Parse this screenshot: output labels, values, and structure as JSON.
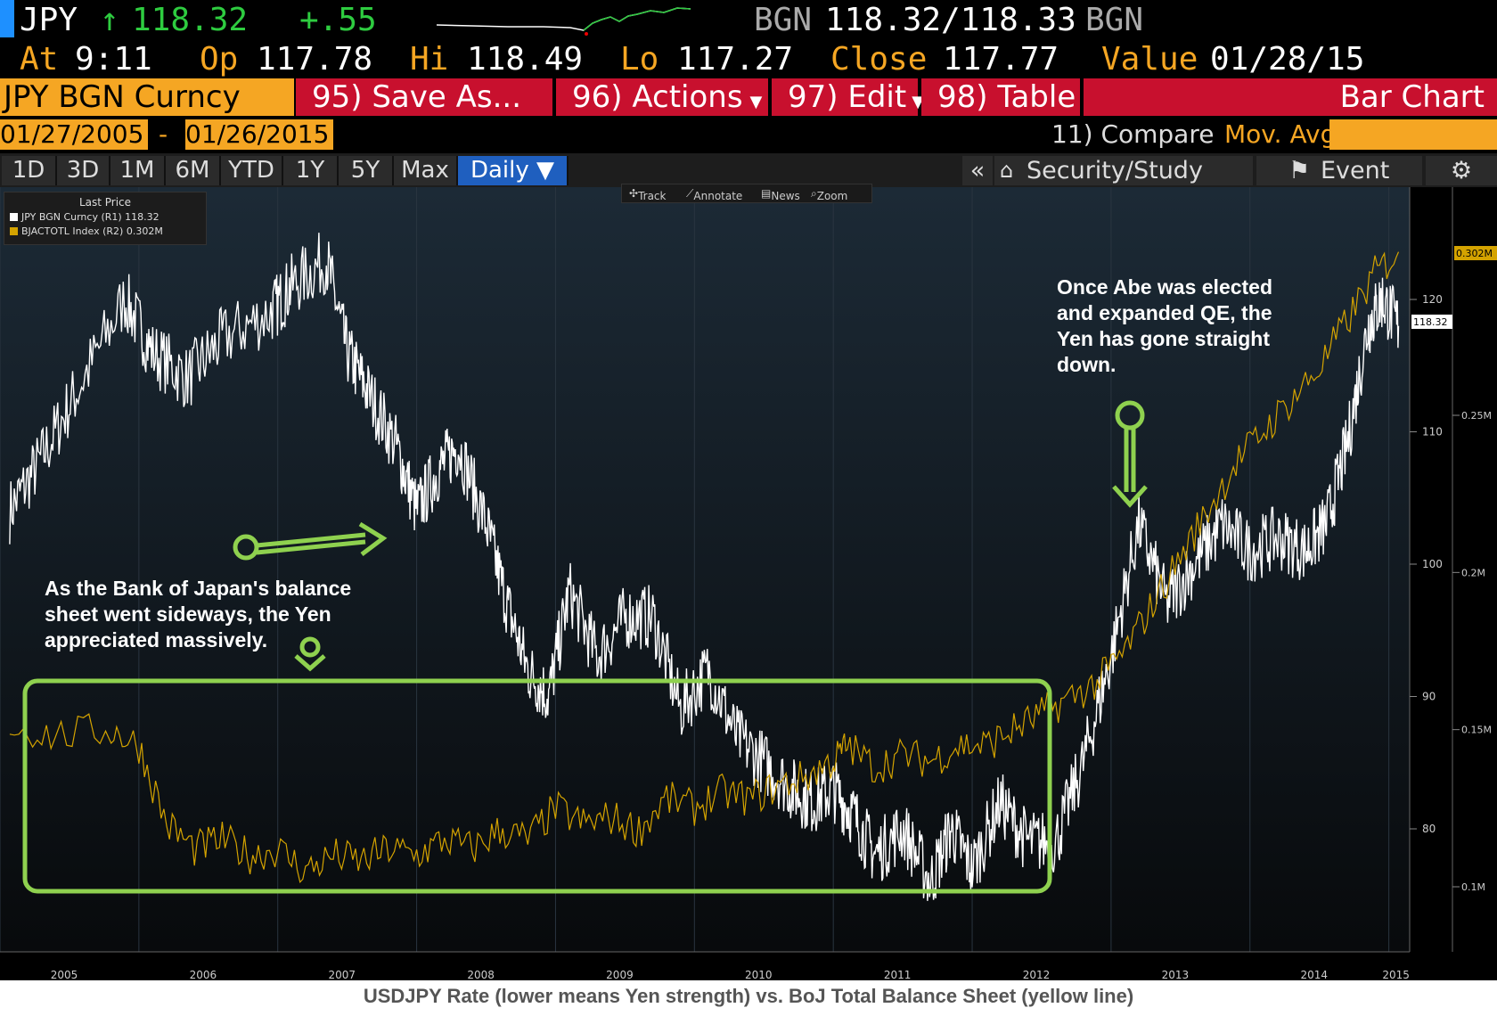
{
  "header": {
    "ticker": "JPY",
    "arrow": "↑",
    "last": "118.32",
    "change": "+.55",
    "source": "BGN",
    "bid_ask": "118.32/118.33",
    "source2": "BGN",
    "at_label": "At",
    "at_value": "9:11",
    "op_label": "Op",
    "op_value": "117.78",
    "hi_label": "Hi",
    "hi_value": "118.49",
    "lo_label": "Lo",
    "lo_value": "117.27",
    "close_label": "Close",
    "close_value": "117.77",
    "value_label": "Value",
    "value_value": "01/28/15"
  },
  "toolbar": {
    "security": "JPY BGN Curncy",
    "save_as": "95) Save As...",
    "actions": "96) Actions",
    "edit": "97) Edit",
    "table": "98) Table",
    "view": "Bar Chart",
    "date_from": "01/27/2005",
    "date_sep": "-",
    "date_to": "01/26/2015",
    "compare": "11) Compare",
    "mov_avgs": "Mov. Avgs",
    "periods": [
      "1D",
      "3D",
      "1M",
      "6M",
      "YTD",
      "1Y",
      "5Y",
      "Max"
    ],
    "frequency": "Daily ▼",
    "collapse": "«",
    "security_study": "Security/Study",
    "event": "Event",
    "gear": "⚙"
  },
  "tools": {
    "track": "Track",
    "annotate": "Annotate",
    "news": "News",
    "zoom": "Zoom"
  },
  "legend": {
    "title": "Last Price",
    "items": [
      {
        "label": "JPY BGN Curncy  (R1) 118.32",
        "color": "#ffffff"
      },
      {
        "label": "BJACTOTL Index  (R2)    0.302M",
        "color": "#d4a300"
      }
    ]
  },
  "annotations": {
    "left": [
      "As the Bank of Japan's balance",
      "sheet went sideways, the Yen",
      "appreciated massively."
    ],
    "right": [
      "Once Abe was elected",
      "and expanded QE, the",
      "Yen has gone straight",
      "down."
    ]
  },
  "caption": "USDJPY Rate (lower means Yen strength) vs. BoJ Total Balance Sheet (yellow line)",
  "chart_data": {
    "type": "line",
    "x_ticks": [
      "2005",
      "2006",
      "2007",
      "2008",
      "2009",
      "2010",
      "2011",
      "2012",
      "2013",
      "2014",
      "2015"
    ],
    "y1_ticks": [
      "80",
      "90",
      "100",
      "110",
      "120"
    ],
    "y2_ticks": [
      "0.1M",
      "0.15M",
      "0.2M",
      "0.25M"
    ],
    "y1_last": "118.32",
    "y2_last": "0.302M",
    "y1_lim": [
      75,
      125
    ],
    "y2_lim": [
      0.08,
      0.32
    ],
    "series": [
      {
        "name": "JPY BGN Curncy",
        "axis": "y1",
        "color": "#ffffff",
        "x": [
          2005.07,
          2005.3,
          2005.55,
          2005.9,
          2006.1,
          2006.35,
          2006.6,
          2006.95,
          2007.1,
          2007.35,
          2007.5,
          2007.65,
          2007.85,
          2008.0,
          2008.15,
          2008.3,
          2008.5,
          2008.65,
          2008.8,
          2008.95,
          2009.1,
          2009.3,
          2009.5,
          2009.7,
          2009.9,
          2010.1,
          2010.3,
          2010.5,
          2010.7,
          2010.85,
          2011.0,
          2011.15,
          2011.3,
          2011.5,
          2011.7,
          2011.85,
          2012.0,
          2012.2,
          2012.4,
          2012.6,
          2012.8,
          2013.0,
          2013.2,
          2013.4,
          2013.6,
          2013.8,
          2014.0,
          2014.2,
          2014.4,
          2014.55,
          2014.7,
          2014.85,
          2014.95,
          2015.07
        ],
        "y": [
          104,
          108,
          113,
          120,
          116,
          114,
          117,
          119,
          121,
          123,
          116,
          113,
          109,
          104,
          107,
          109,
          103,
          97,
          92,
          90,
          98,
          93,
          96,
          96,
          89,
          92,
          87,
          85,
          83,
          82,
          83,
          81,
          78,
          80,
          76,
          80,
          77,
          82,
          79,
          79,
          85,
          93,
          103,
          97,
          100,
          103,
          101,
          102,
          101,
          103,
          109,
          118,
          120,
          118
        ]
      },
      {
        "name": "BJACTOTL Index",
        "axis": "y2",
        "color": "#d4a300",
        "x": [
          2005.07,
          2005.4,
          2005.8,
          2006.0,
          2006.2,
          2006.4,
          2006.6,
          2006.8,
          2007.0,
          2007.2,
          2007.4,
          2007.6,
          2007.8,
          2008.0,
          2008.2,
          2008.4,
          2008.6,
          2008.8,
          2009.0,
          2009.2,
          2009.4,
          2009.6,
          2009.8,
          2010.0,
          2010.2,
          2010.4,
          2010.6,
          2010.8,
          2011.0,
          2011.1,
          2011.3,
          2011.5,
          2011.7,
          2011.9,
          2012.1,
          2012.3,
          2012.5,
          2012.7,
          2012.9,
          2013.1,
          2013.3,
          2013.5,
          2013.7,
          2013.9,
          2014.1,
          2014.3,
          2014.5,
          2014.7,
          2014.9,
          2015.07
        ],
        "y": [
          0.151,
          0.148,
          0.15,
          0.145,
          0.12,
          0.112,
          0.115,
          0.11,
          0.112,
          0.105,
          0.11,
          0.108,
          0.112,
          0.11,
          0.115,
          0.112,
          0.118,
          0.115,
          0.125,
          0.12,
          0.122,
          0.118,
          0.128,
          0.125,
          0.13,
          0.128,
          0.132,
          0.135,
          0.14,
          0.145,
          0.138,
          0.142,
          0.14,
          0.145,
          0.145,
          0.15,
          0.155,
          0.16,
          0.165,
          0.175,
          0.19,
          0.205,
          0.22,
          0.235,
          0.245,
          0.255,
          0.265,
          0.28,
          0.295,
          0.302
        ]
      }
    ]
  }
}
